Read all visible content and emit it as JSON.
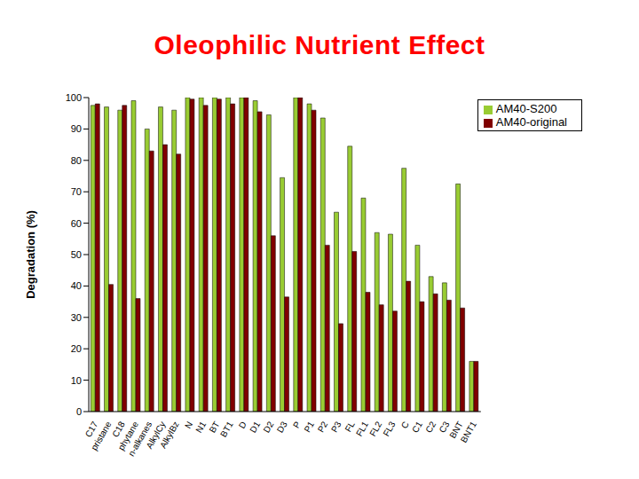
{
  "chart_data": {
    "type": "bar",
    "title": "Oleophilic Nutrient Effect",
    "y_label": "Degradation (%)",
    "categories": [
      "C17",
      "pristane",
      "C18",
      "phytane",
      "n-alkanes",
      "AlkylCy",
      "AlkylBz",
      "N",
      "N1",
      "BT",
      "BT1",
      "D",
      "D1",
      "D2",
      "D3",
      "P",
      "P1",
      "P2",
      "P3",
      "FL",
      "FL1",
      "FL2",
      "FL3",
      "C",
      "C1",
      "C2",
      "C3",
      "BNT",
      "BNT1"
    ],
    "series": [
      {
        "name": "AM40-S200",
        "color": "#99cc33",
        "values": [
          97.5,
          97,
          96,
          99,
          90,
          97,
          96,
          100,
          100,
          100,
          100,
          100,
          99,
          94.5,
          74.5,
          100,
          98,
          93.5,
          63.5,
          84.5,
          68,
          57,
          56.5,
          77.5,
          53,
          43,
          41,
          72.5,
          16
        ]
      },
      {
        "name": "AM40-original",
        "color": "#800000",
        "values": [
          98,
          40.5,
          97.5,
          36,
          83,
          85,
          82,
          99.5,
          97.5,
          99.5,
          98,
          100,
          95.5,
          56,
          36.5,
          100,
          96,
          53,
          28,
          51,
          38,
          34,
          32,
          41.5,
          35,
          37.5,
          35.5,
          33,
          16
        ]
      }
    ],
    "ylim": [
      0,
      100
    ],
    "yticks": [
      0,
      10,
      20,
      30,
      40,
      50,
      60,
      70,
      80,
      90,
      100
    ],
    "grid": false,
    "legend": "upper right"
  }
}
